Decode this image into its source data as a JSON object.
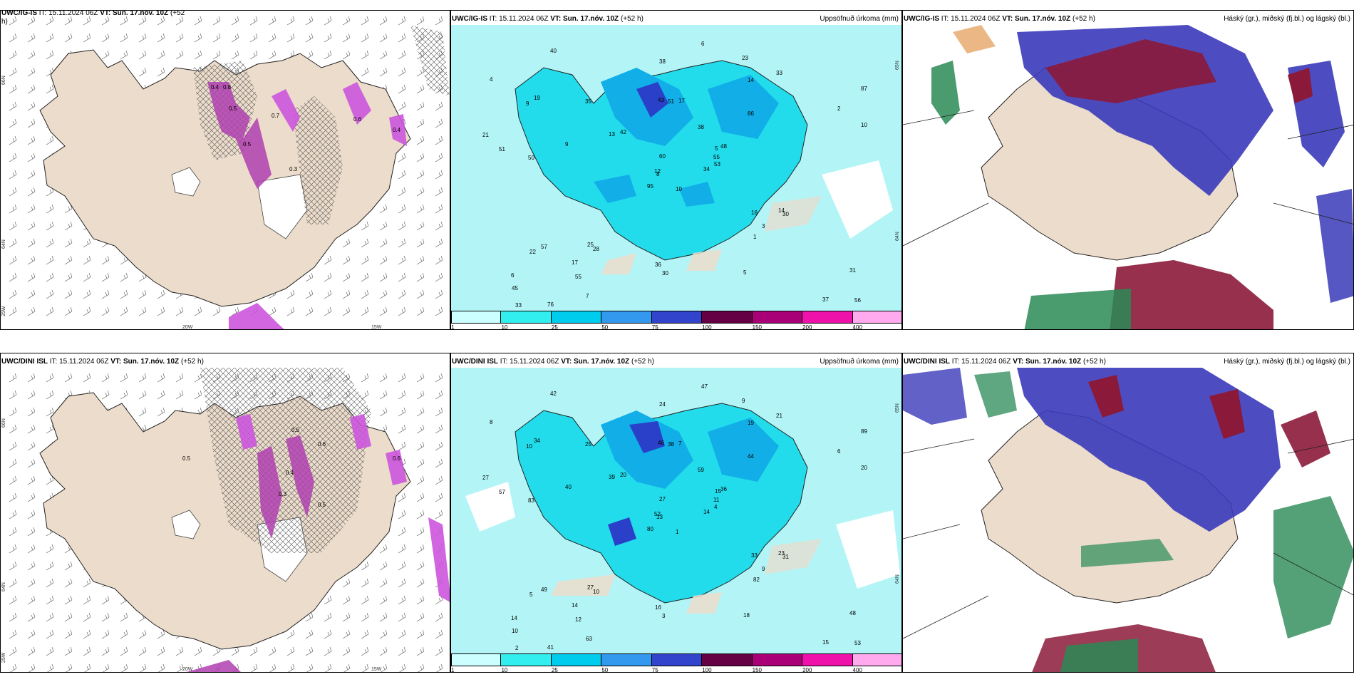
{
  "top": {
    "left": {
      "title_model": "UWC/IG-IS",
      "title_it": "IT: 15.11.2024 06Z",
      "title_vt": "VT: Sun. 17.nóv. 10Z",
      "title_lead": "(+52",
      "title_lead2": "h)",
      "lat_labels": [
        "66N",
        "64N",
        "25W"
      ],
      "lon_labels": [
        "20W",
        "15W"
      ],
      "values": [
        "0.4",
        "0.8",
        "0.5",
        "0.3",
        "0.6",
        "0.7",
        "0.5",
        "0.4"
      ]
    },
    "middle": {
      "title_model": "UWC/IG-IS",
      "title_it": "IT: 15.11.2024 06Z",
      "title_vt": "VT: Sun. 17.nóv. 10Z",
      "title_lead": "(+52 h)",
      "right_label": "Uppsöfnuð úrkoma (mm)",
      "lat_labels": [
        "65N",
        "64N"
      ],
      "numbers": [
        "10",
        "9",
        "8",
        "6",
        "5",
        "28",
        "23",
        "17",
        "14",
        "34",
        "40",
        "56",
        "50",
        "87",
        "95",
        "86",
        "76",
        "43",
        "38",
        "57",
        "42",
        "45",
        "55",
        "51",
        "48",
        "30",
        "19",
        "38",
        "51",
        "16",
        "10",
        "12",
        "36",
        "60",
        "35",
        "33",
        "25",
        "37",
        "31",
        "14",
        "6",
        "13",
        "9",
        "1",
        "7",
        "21",
        "55",
        "33",
        "30",
        "53",
        "22",
        "2",
        "4",
        "3",
        "5",
        "17"
      ]
    },
    "right": {
      "title_model": "UWC/IG-IS",
      "title_it": "IT: 15.11.2024 06Z",
      "title_vt": "VT: Sun. 17.nóv. 10Z",
      "title_lead": "(+52 h)",
      "right_label": "Háský (gr.), miðský (fj.bl.) og lágský (bl.)"
    }
  },
  "bottom": {
    "left": {
      "title_model": "UWC/DINI ISL",
      "title_it": "IT: 15.11.2024 06Z",
      "title_vt": "VT: Sun. 17.nóv. 10Z",
      "title_lead": "(+52 h)",
      "lat_labels": [
        "66N",
        "64N",
        "25W"
      ],
      "lon_labels": [
        "20W",
        "15W"
      ],
      "values": [
        "0.5",
        "0.6",
        "0.4",
        "0.3",
        "0.5",
        "0.6",
        "0.5"
      ]
    },
    "middle": {
      "title_model": "UWC/DINI ISL",
      "title_it": "IT: 15.11.2024 06Z",
      "title_vt": "VT: Sun. 17.nóv. 10Z",
      "title_lead": "(+52 h)",
      "right_label": "Uppsöfnuð úrkoma (mm)",
      "lat_labels": [
        "65N",
        "64N"
      ],
      "numbers": [
        "1",
        "10",
        "13",
        "14",
        "15",
        "10",
        "9",
        "7",
        "19",
        "14",
        "42",
        "53",
        "83",
        "89",
        "80",
        "44",
        "41",
        "46",
        "59",
        "49",
        "20",
        "10",
        "12",
        "38",
        "36",
        "31",
        "34",
        "24",
        "57",
        "33",
        "20",
        "52",
        "16",
        "27",
        "25",
        "21",
        "27",
        "15",
        "48",
        "23",
        "47",
        "39",
        "40",
        "82",
        "63",
        "27",
        "11",
        "2",
        "3",
        "4",
        "5",
        "6",
        "8",
        "9",
        "18",
        "14"
      ]
    },
    "right": {
      "title_model": "UWC/DINI ISL",
      "title_it": "IT: 15.11.2024 06Z",
      "title_vt": "VT: Sun. 17.nóv. 10Z",
      "title_lead": "(+52 h)",
      "right_label": "Háský (gr.), miðský (fj.bl.) og lágský (bl.)"
    }
  },
  "colorbar": {
    "ticks": [
      "1",
      "10",
      "25",
      "50",
      "75",
      "100",
      "150",
      "200",
      "400"
    ],
    "colors": [
      "#ccffff",
      "#33eeee",
      "#00ccee",
      "#3399ee",
      "#3344cc",
      "#660044",
      "#aa0077",
      "#ee11aa",
      "#ffaaee"
    ]
  },
  "colors": {
    "land": "#ecdccb",
    "sea_precip": "#b3f5f7",
    "precip_mid": "#22dcec",
    "precip_high": "#11aee8",
    "precip_max": "#2a40c8",
    "snow_mix": "#cc55dd",
    "high_cloud": "#2a8a55",
    "mid_cloud": "#3a3aba",
    "low_cloud": "#8b1a3a"
  }
}
